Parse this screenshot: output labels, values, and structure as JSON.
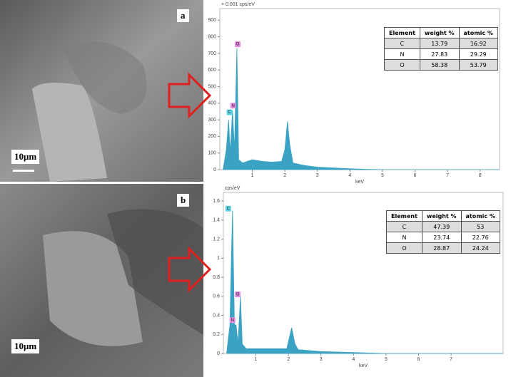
{
  "panels": [
    {
      "label": "a",
      "scale_bar": "10μm"
    },
    {
      "label": "b",
      "scale_bar": "10μm"
    }
  ],
  "chart_data": [
    {
      "type": "area",
      "y_unit": "× 0.001 cps/eV",
      "x_label": "keV",
      "color": "#3aa3c4",
      "x": [
        0.1,
        0.2,
        0.27,
        0.32,
        0.39,
        0.45,
        0.525,
        0.58,
        0.7,
        1.0,
        1.3,
        1.6,
        1.9,
        2.0,
        2.08,
        2.15,
        2.25,
        2.6,
        3.0,
        3.5,
        4.0,
        4.5,
        5.0,
        8.6
      ],
      "values": [
        0,
        120,
        300,
        100,
        355,
        120,
        730,
        60,
        40,
        60,
        50,
        45,
        50,
        120,
        290,
        150,
        40,
        25,
        15,
        10,
        5,
        2,
        0,
        0
      ],
      "xlim": [
        0,
        8.6
      ],
      "xticks": [
        1,
        2,
        3,
        4,
        5,
        6,
        7,
        8
      ],
      "ylim": [
        0,
        970
      ],
      "yticks": [
        0,
        100,
        200,
        300,
        400,
        500,
        600,
        700,
        800,
        900
      ],
      "annotations": [
        {
          "text": "C",
          "x": 0.3,
          "y": 345,
          "color": "#5fd3e6"
        },
        {
          "text": "N",
          "x": 0.41,
          "y": 385,
          "color": "#e48ee0"
        },
        {
          "text": "O",
          "x": 0.55,
          "y": 755,
          "color": "#e48ee0"
        }
      ],
      "table": {
        "columns": [
          "Element",
          "weight %",
          "atomic %"
        ],
        "rows": [
          [
            "C",
            13.79,
            16.92
          ],
          [
            "N",
            27.83,
            29.29
          ],
          [
            "O",
            58.38,
            53.79
          ]
        ]
      }
    },
    {
      "type": "area",
      "y_unit": "cps/eV",
      "x_label": "keV",
      "color": "#3aa3c4",
      "x": [
        0.1,
        0.2,
        0.28,
        0.34,
        0.39,
        0.45,
        0.525,
        0.58,
        0.7,
        1.5,
        1.95,
        2.05,
        2.1,
        2.2,
        2.3,
        3.0,
        4.0,
        5.0,
        8.6
      ],
      "values": [
        0,
        0.3,
        1.5,
        0.3,
        0.3,
        0.1,
        0.6,
        0.1,
        0.05,
        0.05,
        0.05,
        0.2,
        0.27,
        0.1,
        0.04,
        0.02,
        0.01,
        0,
        0
      ],
      "xlim": [
        0,
        8.6
      ],
      "xticks": [
        1,
        2,
        3,
        4,
        5,
        6,
        7
      ],
      "ylim": [
        0,
        1.69
      ],
      "yticks": [
        0,
        0.2,
        0.4,
        0.6,
        0.8,
        1.0,
        1.2,
        1.4,
        1.6
      ],
      "annotations": [
        {
          "text": "C",
          "x": 0.15,
          "y": 1.52,
          "color": "#5fd3e6"
        },
        {
          "text": "N",
          "x": 0.28,
          "y": 0.35,
          "color": "#e48ee0"
        },
        {
          "text": "O",
          "x": 0.44,
          "y": 0.62,
          "color": "#e48ee0"
        }
      ],
      "table": {
        "columns": [
          "Element",
          "weight %",
          "atomic %"
        ],
        "rows": [
          [
            "C",
            47.39,
            53
          ],
          [
            "N",
            23.74,
            22.76
          ],
          [
            "O",
            28.87,
            24.24
          ]
        ]
      }
    }
  ]
}
